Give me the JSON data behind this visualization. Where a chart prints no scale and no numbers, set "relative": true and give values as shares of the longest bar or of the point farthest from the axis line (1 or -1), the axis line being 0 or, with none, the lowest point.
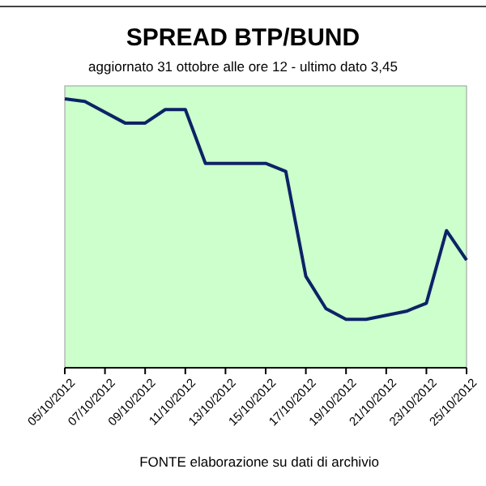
{
  "chart_data": {
    "type": "line",
    "title": "SPREAD  BTP/BUND",
    "subtitle": "aggiornato 31 ottobre alle ore 12 - ultimo dato 3,45",
    "relative": true,
    "x": [
      "2012-10-05",
      "2012-10-06",
      "2012-10-08",
      "2012-10-09",
      "2012-10-10",
      "2012-10-11",
      "2012-10-12",
      "2012-10-15",
      "2012-10-16",
      "2012-10-17",
      "2012-10-18",
      "2012-10-19",
      "2012-10-20",
      "2012-10-22",
      "2012-10-23",
      "2012-10-24",
      "2012-10-25"
    ],
    "xlim": [
      "2012-10-05",
      "2012-10-25"
    ],
    "xticks": [
      {
        "value": "2012-10-05",
        "label": "05/10/2012"
      },
      {
        "value": "2012-10-07",
        "label": "07/10/2012"
      },
      {
        "value": "2012-10-09",
        "label": "09/10/2012"
      },
      {
        "value": "2012-10-11",
        "label": "11/10/2012"
      },
      {
        "value": "2012-10-13",
        "label": "13/10/2012"
      },
      {
        "value": "2012-10-15",
        "label": "15/10/2012"
      },
      {
        "value": "2012-10-17",
        "label": "17/10/2012"
      },
      {
        "value": "2012-10-19",
        "label": "19/10/2012"
      },
      {
        "value": "2012-10-21",
        "label": "21/10/2012"
      },
      {
        "value": "2012-10-23",
        "label": "23/10/2012"
      },
      {
        "value": "2012-10-25",
        "label": "25/10/2012"
      }
    ],
    "series": [
      {
        "color": "#0d2366",
        "values": [
          1,
          0.99,
          0.91,
          0.91,
          0.96,
          0.96,
          0.76,
          0.76,
          0.73,
          0.34,
          0.22,
          0.18,
          0.18,
          0.21,
          0.24,
          0.51,
          0.4
        ]
      }
    ],
    "marker": "none",
    "line_style": "solid",
    "annotations": [
      "FONTE elaborazione su dati di archivio"
    ]
  }
}
